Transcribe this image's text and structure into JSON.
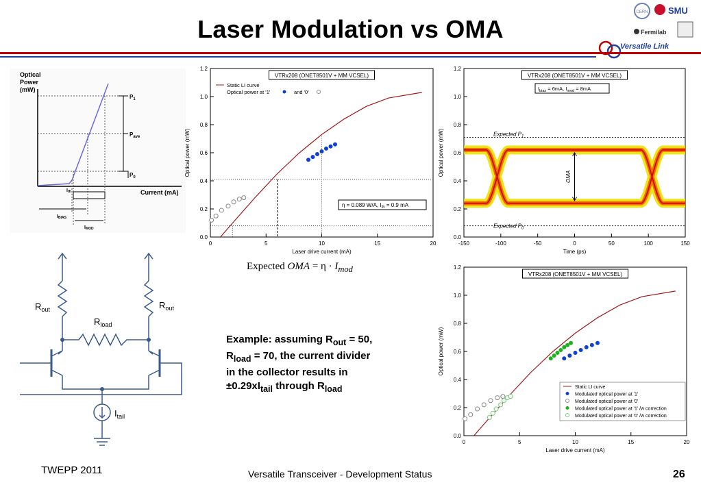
{
  "slide": {
    "title": "Laser Modulation vs OMA",
    "brand": "Versatile Link",
    "footer_left": "TWEPP 2011",
    "footer_center": "Versatile Transceiver - Development Status",
    "page_number": "26"
  },
  "logos": {
    "cern": "CERN",
    "smu": "SMU",
    "fermilab": "Fermilab"
  },
  "formula": {
    "prefix": "Expected ",
    "lhs": "OMA",
    "eq": " = η · ",
    "var": "I",
    "sub": "mod"
  },
  "example": {
    "l1a": "Example: assuming R",
    "l1s": "out",
    "l1b": " = 50,",
    "l2a": "R",
    "l2s": "load",
    "l2b": " = 70, the current divider",
    "l3": "in the collector results in",
    "l4a": "±0.29xI",
    "l4s": "tail",
    "l4b": " through R",
    "l4s2": "load"
  },
  "li_diagram": {
    "ylabel1": "Optical",
    "ylabel2": "Power",
    "ylabel3": "(mW)",
    "xlabel": "Current (mA)",
    "p1": "P",
    "p1s": "1",
    "pave": "P",
    "paves": "ave",
    "p0": "P",
    "p0s": "0",
    "ith": "I",
    "iths": "th",
    "ibias": "I",
    "ibiass": "BIAS",
    "imod": "I",
    "imods": "MOD"
  },
  "circuit": {
    "rout": "R",
    "routs": "out",
    "rload": "R",
    "rloads": "load",
    "itail": "I",
    "itails": "tail"
  },
  "chart_data": [
    {
      "type": "scatter",
      "title": "VTRx208 (ONET8501V + MM VCSEL)",
      "xlabel": "Laser drive current (mA)",
      "ylabel": "Optical power (mW)",
      "xlim": [
        0,
        20
      ],
      "ylim": [
        0,
        1.2
      ],
      "xticks": [
        "0",
        "5",
        "10",
        "15",
        "20"
      ],
      "yticks": [
        "0.0",
        "0.2",
        "0.4",
        "0.6",
        "0.8",
        "1.0",
        "1.2"
      ],
      "legend": [
        "Static LI curve",
        "Optical power at '1'",
        "and '0'"
      ],
      "annotation": "η = 0.089 W/A, I",
      "annotation_sub": "th",
      "annotation_tail": " = 0.9 mA",
      "li_curve": [
        [
          0.9,
          0
        ],
        [
          2,
          0.1
        ],
        [
          4,
          0.28
        ],
        [
          6,
          0.45
        ],
        [
          8,
          0.6
        ],
        [
          10,
          0.73
        ],
        [
          12,
          0.84
        ],
        [
          14,
          0.93
        ],
        [
          16,
          0.99
        ],
        [
          19,
          1.03
        ]
      ],
      "ones": [
        [
          8.8,
          0.55
        ],
        [
          9.2,
          0.57
        ],
        [
          9.6,
          0.59
        ],
        [
          10.0,
          0.61
        ],
        [
          10.4,
          0.63
        ],
        [
          10.8,
          0.645
        ],
        [
          11.2,
          0.66
        ]
      ],
      "zeros": [
        [
          0.1,
          0.12
        ],
        [
          0.5,
          0.15
        ],
        [
          1.0,
          0.19
        ],
        [
          1.6,
          0.22
        ],
        [
          2.1,
          0.25
        ],
        [
          2.6,
          0.27
        ],
        [
          3.0,
          0.28
        ]
      ]
    },
    {
      "type": "heatmap",
      "title": "VTRx208 (ONET8501V + MM VCSEL)",
      "xlabel": "Time (ps)",
      "ylabel": "Optical power (mW)",
      "xlim": [
        -150,
        150
      ],
      "ylim": [
        0,
        1.2
      ],
      "xticks": [
        "-150",
        "-100",
        "-50",
        "0",
        "50",
        "100",
        "150"
      ],
      "yticks": [
        "0.0",
        "0.2",
        "0.4",
        "0.6",
        "0.8",
        "1.0",
        "1.2"
      ],
      "annotation": "I",
      "annotation_s1": "bias",
      "annotation_mid": " = 6mA, I",
      "annotation_s2": "mod",
      "annotation_tail": " = 8mA",
      "expected_p1": "Expected P",
      "expected_p1_sub": "1",
      "expected_p0": "Expected P",
      "expected_p0_sub": "0",
      "oma_label": "OMA",
      "p1_level": 0.71,
      "p0_level": 0.08,
      "one_level": 0.62,
      "zero_level": 0.24
    },
    {
      "type": "scatter",
      "title": "VTRx208 (ONET8501V + MM VCSEL)",
      "xlabel": "Laser drive current (mA)",
      "ylabel": "Optical power (mW)",
      "xlim": [
        0,
        20
      ],
      "ylim": [
        0,
        1.2
      ],
      "xticks": [
        "0",
        "5",
        "10",
        "15",
        "20"
      ],
      "yticks": [
        "0.0",
        "0.2",
        "0.4",
        "0.6",
        "0.8",
        "1.0",
        "1.2"
      ],
      "legend": [
        "Static LI curve",
        "Modulated optical power at '1'",
        "Modulated optical power at '0'",
        "Modulated optical power at '1' /w correction",
        "Modulated optical power at '0' /w correction"
      ],
      "li_curve": [
        [
          0.9,
          0
        ],
        [
          2,
          0.1
        ],
        [
          4,
          0.28
        ],
        [
          6,
          0.45
        ],
        [
          8,
          0.6
        ],
        [
          10,
          0.73
        ],
        [
          12,
          0.84
        ],
        [
          14,
          0.93
        ],
        [
          16,
          0.99
        ],
        [
          19,
          1.03
        ]
      ],
      "ones": [
        [
          9.0,
          0.55
        ],
        [
          9.5,
          0.57
        ],
        [
          10.0,
          0.59
        ],
        [
          10.5,
          0.61
        ],
        [
          11.0,
          0.63
        ],
        [
          11.5,
          0.645
        ],
        [
          12.0,
          0.66
        ]
      ],
      "zeros": [
        [
          0.1,
          0.12
        ],
        [
          0.6,
          0.15
        ],
        [
          1.2,
          0.19
        ],
        [
          1.8,
          0.22
        ],
        [
          2.4,
          0.25
        ],
        [
          3.0,
          0.27
        ],
        [
          3.5,
          0.28
        ]
      ],
      "ones_corr": [
        [
          7.8,
          0.55
        ],
        [
          8.1,
          0.57
        ],
        [
          8.4,
          0.59
        ],
        [
          8.7,
          0.61
        ],
        [
          9.0,
          0.63
        ],
        [
          9.3,
          0.645
        ],
        [
          9.6,
          0.66
        ]
      ],
      "zeros_corr": [
        [
          2.3,
          0.13
        ],
        [
          2.6,
          0.16
        ],
        [
          2.9,
          0.19
        ],
        [
          3.3,
          0.22
        ],
        [
          3.6,
          0.25
        ],
        [
          3.9,
          0.27
        ],
        [
          4.2,
          0.28
        ]
      ]
    }
  ],
  "colors": {
    "red_rule": "#c00000",
    "blue_rule": "#1f3f9f",
    "li_curve": "#a01818",
    "ones": "#1040d0",
    "corr": "#20b020"
  }
}
